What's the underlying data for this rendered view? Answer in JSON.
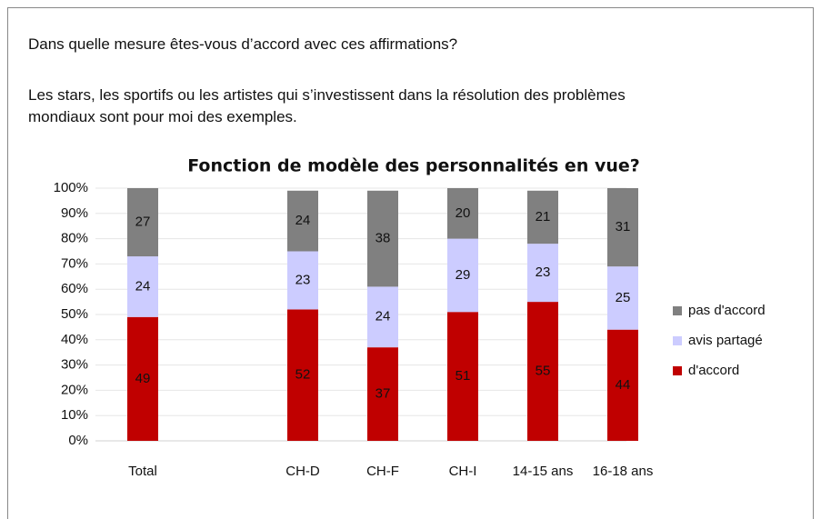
{
  "question": "Dans quelle mesure êtes-vous d’accord avec ces affirmations?",
  "statement": [
    "Les stars, les sportifs ou les artistes qui s’investissent dans la résolution des problèmes",
    "mondiaux sont pour moi des exemples."
  ],
  "chart_data": {
    "type": "stacked_bar",
    "title": "Fonction de modèle des personnalités en vue?",
    "categories": [
      "Total",
      null,
      "CH-D",
      "CH-F",
      "CH-I",
      "14-15 ans",
      "16-18 ans"
    ],
    "series": [
      {
        "name": "d'accord",
        "color": "#c00000",
        "values": [
          49,
          null,
          52,
          37,
          51,
          55,
          44
        ]
      },
      {
        "name": "avis partagé",
        "color": "#ccccff",
        "values": [
          24,
          null,
          23,
          24,
          29,
          23,
          25
        ]
      },
      {
        "name": "pas d'accord",
        "color": "#808080",
        "values": [
          27,
          null,
          24,
          38,
          20,
          21,
          31
        ]
      }
    ],
    "ylim": [
      0,
      100
    ],
    "yticks": [
      {
        "value": 0,
        "label": "0%"
      },
      {
        "value": 10,
        "label": "10%"
      },
      {
        "value": 20,
        "label": "20%"
      },
      {
        "value": 30,
        "label": "30%"
      },
      {
        "value": 40,
        "label": "40%"
      },
      {
        "value": 50,
        "label": "50%"
      },
      {
        "value": 60,
        "label": "60%"
      },
      {
        "value": 70,
        "label": "70%"
      },
      {
        "value": 80,
        "label": "80%"
      },
      {
        "value": 90,
        "label": "90%"
      },
      {
        "value": 100,
        "label": "100%"
      }
    ],
    "grid": true,
    "legend": "right"
  }
}
